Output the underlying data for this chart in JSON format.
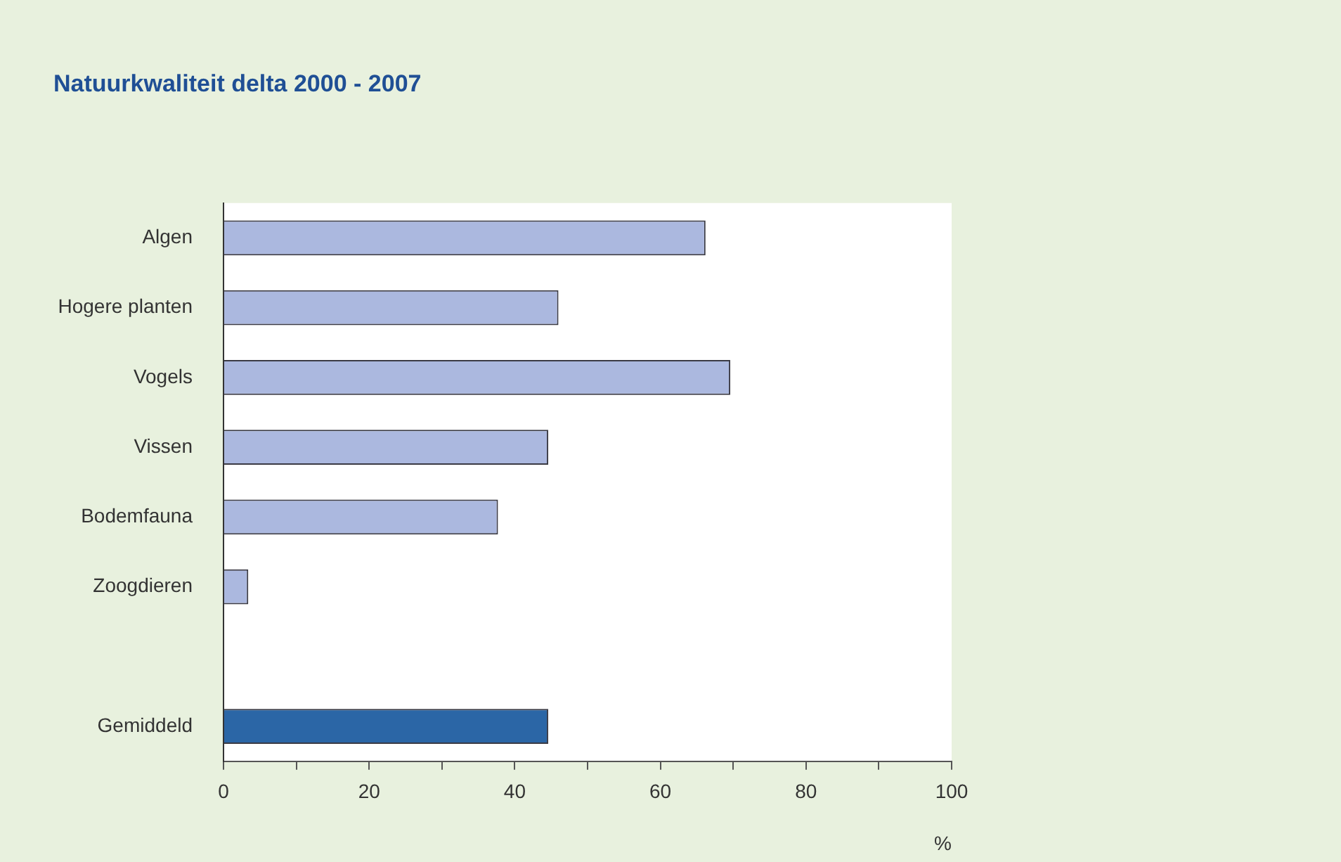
{
  "chart_data": {
    "type": "bar",
    "orientation": "horizontal",
    "title": "Natuurkwaliteit delta 2000 - 2007",
    "xlabel": "%",
    "categories": [
      "Algen",
      "Hogere planten",
      "Vogels",
      "Vissen",
      "Bodemfauna",
      "Zoogdieren",
      null,
      "Gemiddeld"
    ],
    "values": [
      66.2,
      46.0,
      69.6,
      44.6,
      37.7,
      3.4,
      null,
      44.6
    ],
    "colors": [
      "#abb8df",
      "#abb8df",
      "#abb8df",
      "#abb8df",
      "#abb8df",
      "#abb8df",
      "#abb8df",
      "#2b66a6"
    ],
    "xlim": [
      0,
      100
    ],
    "xticks": [
      0,
      {
        "value": 10,
        "label": null
      },
      20,
      {
        "value": 30,
        "label": null
      },
      40,
      {
        "value": 50,
        "label": null
      },
      60,
      {
        "value": 70,
        "label": null
      },
      80,
      {
        "value": 90,
        "label": null
      },
      100
    ],
    "grid": false,
    "legend": false
  }
}
